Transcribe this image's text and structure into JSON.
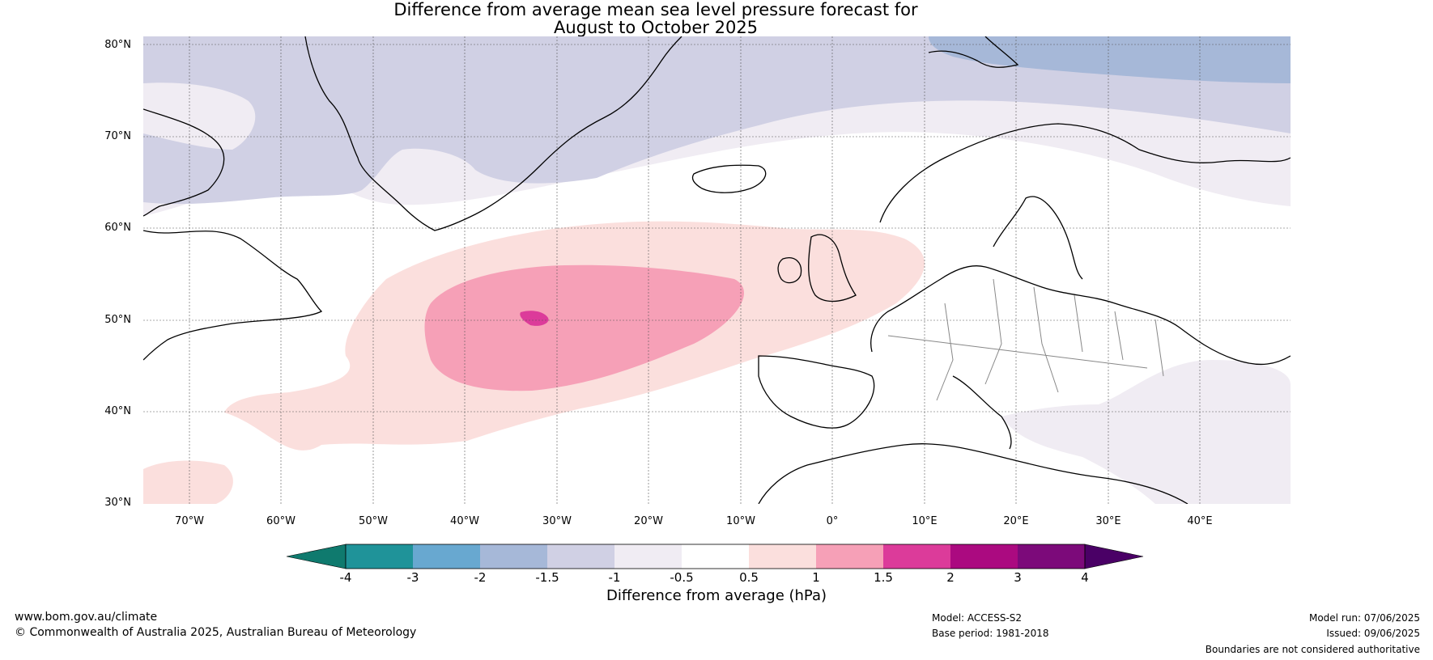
{
  "title": {
    "line1": "Difference from average mean sea level pressure forecast for",
    "line2": "August to October 2025"
  },
  "map": {
    "region": "North Atlantic and Europe",
    "lat_labels": [
      "80°N",
      "70°N",
      "60°N",
      "50°N",
      "40°N",
      "30°N"
    ],
    "lon_labels": [
      "70°W",
      "60°W",
      "50°W",
      "40°W",
      "30°W",
      "20°W",
      "10°W",
      "0°",
      "10°E",
      "20°E",
      "30°E",
      "40°E"
    ],
    "anomaly_areas": [
      {
        "name": "arctic-negative-light",
        "range": "-1.5 to -1"
      },
      {
        "name": "greenland-negative",
        "range": "-1.5 to -1"
      },
      {
        "name": "svalbard-negative",
        "range": "-2 to -1.5"
      },
      {
        "name": "atlantic-positive",
        "range": "0.5 to 1"
      },
      {
        "name": "atlantic-positive-core",
        "range": "1 to 1.5"
      },
      {
        "name": "atlantic-positive-peak",
        "range": "1.5 to 2"
      },
      {
        "name": "eastern-med-negative",
        "range": "-1 to -0.5"
      }
    ]
  },
  "colorbar": {
    "ticks": [
      "-4",
      "-3",
      "-2",
      "-1.5",
      "-1",
      "-0.5",
      "0.5",
      "1",
      "1.5",
      "2",
      "3",
      "4"
    ],
    "colors": [
      "#0f7a6e",
      "#1f9399",
      "#68a8d0",
      "#a6b8d8",
      "#d0d0e4",
      "#f0ecf3",
      "#ffffff",
      "#fbdfdd",
      "#f6a0b7",
      "#dc3b9a",
      "#ab0a80",
      "#7c0a7a",
      "#4a0066"
    ],
    "label": "Difference from average (hPa)"
  },
  "footer": {
    "website": "www.bom.gov.au/climate",
    "copyright": "© Commonwealth of Australia 2025, Australian Bureau of Meteorology",
    "model": "Model: ACCESS-S2",
    "base_period": "Base period: 1981-2018",
    "model_run": "Model run: 07/06/2025",
    "issued": "Issued: 09/06/2025",
    "disclaimer": "Boundaries are not considered authoritative"
  }
}
